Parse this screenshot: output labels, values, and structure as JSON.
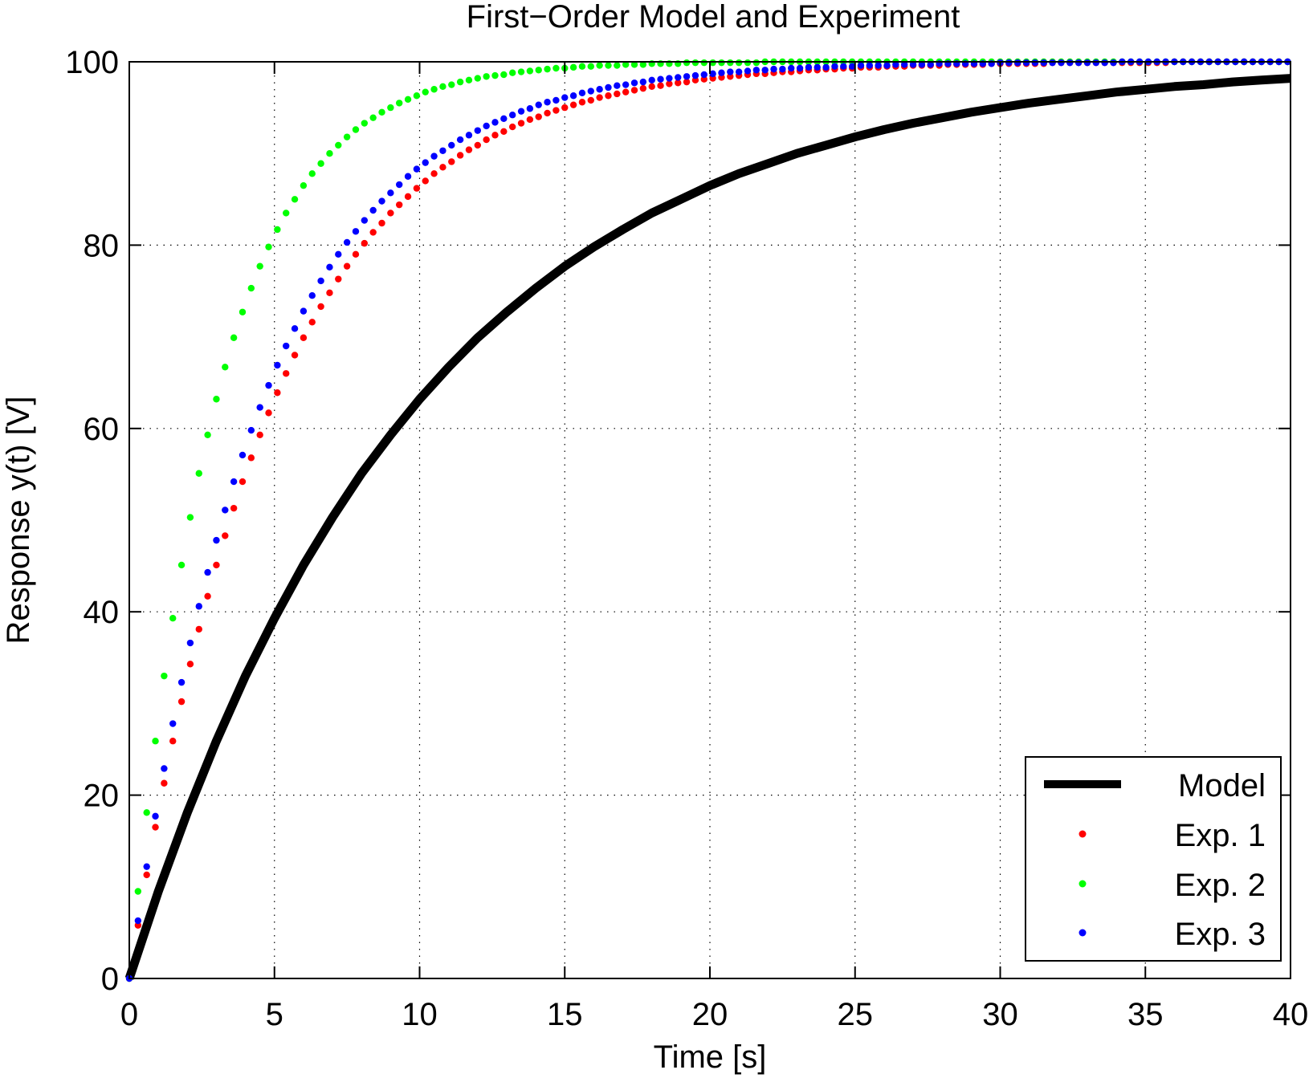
{
  "chart_data": {
    "type": "line",
    "title": "First−Order Model and Experiment",
    "xlabel": "Time [s]",
    "ylabel": "Response y(t) [V]",
    "xlim": [
      0,
      40
    ],
    "ylim": [
      0,
      100
    ],
    "xticks": [
      0,
      5,
      10,
      15,
      20,
      25,
      30,
      35,
      40
    ],
    "yticks": [
      0,
      20,
      40,
      60,
      80,
      100
    ],
    "xtick_labels": [
      "0",
      "5",
      "10",
      "15",
      "20",
      "25",
      "30",
      "35",
      "40"
    ],
    "ytick_labels": [
      "0",
      "20",
      "40",
      "60",
      "80",
      "100"
    ],
    "grid": true,
    "legend_position": "bottom-right",
    "series": [
      {
        "name": "Model",
        "style": "line",
        "color": "#000000",
        "x": [
          0,
          1,
          2,
          3,
          4,
          5,
          6,
          7,
          8,
          9,
          10,
          11,
          12,
          13,
          14,
          15,
          16,
          17,
          18,
          19,
          20,
          21,
          22,
          23,
          24,
          25,
          26,
          27,
          28,
          29,
          30,
          31,
          32,
          33,
          34,
          35,
          36,
          37,
          38,
          39,
          40
        ],
        "y": [
          0,
          9.5,
          18.1,
          25.9,
          33.0,
          39.3,
          45.1,
          50.3,
          55.1,
          59.3,
          63.2,
          66.7,
          69.9,
          72.7,
          75.3,
          77.7,
          79.8,
          81.7,
          83.5,
          85.0,
          86.5,
          87.8,
          88.9,
          90.0,
          90.9,
          91.8,
          92.6,
          93.3,
          93.9,
          94.5,
          95.0,
          95.5,
          95.9,
          96.3,
          96.7,
          97.0,
          97.3,
          97.5,
          97.8,
          98.0,
          98.2
        ]
      },
      {
        "name": "Exp. 1",
        "style": "dots",
        "color": "#ff0000",
        "x": [
          0,
          0.3,
          0.6,
          0.9,
          1.2,
          1.5,
          1.8,
          2.1,
          2.4,
          2.7,
          3.0,
          3.3,
          3.6,
          3.9,
          4.2,
          4.5,
          4.8,
          5.1,
          5.4,
          5.7,
          6.0,
          6.3,
          6.6,
          6.9,
          7.2,
          7.5,
          7.8,
          8.1,
          8.4,
          8.7,
          9.0,
          9.3,
          9.6,
          9.9,
          10.2,
          10.5,
          10.8,
          11.1,
          11.4,
          11.7,
          12.0,
          12.3,
          12.6,
          12.9,
          13.2,
          13.5,
          13.8,
          14.1,
          14.4,
          14.7,
          15.0,
          15.3,
          15.6,
          15.9,
          16.2,
          16.5,
          16.8,
          17.1,
          17.4,
          17.7,
          18.0,
          18.3,
          18.6,
          18.9,
          19.2,
          19.5,
          19.8,
          20.1,
          20.4,
          20.7,
          21.0,
          21.3,
          21.6,
          21.9,
          22.2,
          22.5,
          22.8,
          23.1,
          23.4,
          23.7,
          24.0,
          24.3,
          24.6,
          24.9,
          25.2,
          25.5,
          25.8,
          26.1,
          26.4,
          26.7,
          27.0,
          27.3,
          27.6,
          27.9,
          28.2,
          28.5,
          28.8,
          29.1,
          29.4,
          29.7,
          30.0,
          30.3,
          30.6,
          30.9,
          31.2,
          31.5,
          31.8,
          32.1,
          32.4,
          32.7,
          33.0,
          33.3,
          33.6,
          33.9,
          34.2,
          34.5,
          34.8,
          35.1,
          35.4,
          35.7,
          36.0,
          36.3,
          36.6,
          36.9,
          37.2,
          37.5,
          37.8,
          38.1,
          38.4,
          38.7,
          39.0,
          39.3,
          39.6,
          39.9
        ],
        "y": [
          0,
          5.8,
          11.3,
          16.5,
          21.3,
          25.9,
          30.2,
          34.3,
          38.1,
          41.7,
          45.1,
          48.3,
          51.3,
          54.2,
          56.8,
          59.3,
          61.7,
          63.9,
          66.0,
          68.0,
          69.9,
          71.6,
          73.3,
          74.8,
          76.3,
          77.7,
          79.0,
          80.2,
          81.4,
          82.4,
          83.5,
          84.4,
          85.3,
          86.2,
          87.0,
          87.8,
          88.5,
          89.1,
          89.8,
          90.4,
          90.9,
          91.5,
          92.0,
          92.4,
          92.9,
          93.3,
          93.7,
          94.0,
          94.4,
          94.7,
          95.0,
          95.3,
          95.6,
          95.8,
          96.1,
          96.3,
          96.5,
          96.7,
          96.9,
          97.1,
          97.3,
          97.4,
          97.6,
          97.7,
          97.8,
          98.0,
          98.1,
          98.2,
          98.3,
          98.4,
          98.5,
          98.6,
          98.7,
          98.7,
          98.8,
          98.9,
          98.9,
          99.0,
          99.1,
          99.1,
          99.2,
          99.2,
          99.3,
          99.3,
          99.4,
          99.4,
          99.4,
          99.5,
          99.5,
          99.5,
          99.6,
          99.6,
          99.6,
          99.6,
          99.7,
          99.7,
          99.7,
          99.7,
          99.7,
          99.8,
          99.8,
          99.8,
          99.8,
          99.8,
          99.8,
          99.8,
          99.9,
          99.9,
          99.9,
          99.9,
          99.9,
          99.9,
          99.9,
          99.9,
          99.9,
          99.9,
          99.9,
          99.9,
          99.9,
          99.9,
          100,
          100,
          100,
          100,
          100,
          100,
          100,
          100,
          100,
          100,
          100,
          100,
          100,
          100
        ]
      },
      {
        "name": "Exp. 2",
        "style": "dots",
        "color": "#00ff00",
        "x": [
          0,
          0.3,
          0.6,
          0.9,
          1.2,
          1.5,
          1.8,
          2.1,
          2.4,
          2.7,
          3.0,
          3.3,
          3.6,
          3.9,
          4.2,
          4.5,
          4.8,
          5.1,
          5.4,
          5.7,
          6.0,
          6.3,
          6.6,
          6.9,
          7.2,
          7.5,
          7.8,
          8.1,
          8.4,
          8.7,
          9.0,
          9.3,
          9.6,
          9.9,
          10.2,
          10.5,
          10.8,
          11.1,
          11.4,
          11.7,
          12.0,
          12.3,
          12.6,
          12.9,
          13.2,
          13.5,
          13.8,
          14.1,
          14.4,
          14.7,
          15.0,
          15.3,
          15.6,
          15.9,
          16.2,
          16.5,
          16.8,
          17.1,
          17.4,
          17.7,
          18.0,
          18.3,
          18.6,
          18.9,
          19.2,
          19.5,
          19.8,
          20.1,
          20.4,
          20.7,
          21.0,
          21.3,
          21.6,
          21.9,
          22.2,
          22.5,
          22.8,
          23.1,
          23.4,
          23.7,
          24.0,
          24.3,
          24.6,
          24.9,
          25.2,
          25.5,
          25.8,
          26.1,
          26.4,
          26.7,
          27.0,
          27.3,
          27.6,
          27.9,
          28.2,
          28.5,
          28.8,
          29.1,
          29.4,
          29.7,
          30.0,
          30.3,
          30.6,
          30.9,
          31.2,
          31.5,
          31.8,
          32.1,
          32.4,
          32.7,
          33.0,
          33.3,
          33.6,
          33.9,
          34.2,
          34.5,
          34.8,
          35.1,
          35.4,
          35.7,
          36.0,
          36.3,
          36.6,
          36.9,
          37.2,
          37.5,
          37.8,
          38.1,
          38.4,
          38.7,
          39.0,
          39.3,
          39.6,
          39.9
        ],
        "y": [
          0,
          9.5,
          18.1,
          25.9,
          33.0,
          39.3,
          45.1,
          50.3,
          55.1,
          59.3,
          63.2,
          66.7,
          69.9,
          72.7,
          75.3,
          77.7,
          79.8,
          81.7,
          83.5,
          85.0,
          86.5,
          87.8,
          88.9,
          90.0,
          90.9,
          91.8,
          92.6,
          93.3,
          93.9,
          94.5,
          95.0,
          95.5,
          95.9,
          96.3,
          96.7,
          97.0,
          97.3,
          97.5,
          97.8,
          98.0,
          98.2,
          98.4,
          98.5,
          98.6,
          98.8,
          98.9,
          99.0,
          99.1,
          99.2,
          99.3,
          99.3,
          99.4,
          99.5,
          99.5,
          99.6,
          99.6,
          99.6,
          99.7,
          99.7,
          99.7,
          99.8,
          99.8,
          99.8,
          99.8,
          99.9,
          99.9,
          99.9,
          99.9,
          99.9,
          99.9,
          99.9,
          99.9,
          99.9,
          100,
          100,
          100,
          100,
          100,
          100,
          100,
          100,
          100,
          100,
          100,
          100,
          100,
          100,
          100,
          100,
          100,
          100,
          100,
          100,
          100,
          100,
          100,
          100,
          100,
          100,
          100,
          100,
          100,
          100,
          100,
          100,
          100,
          100,
          100,
          100,
          100,
          100,
          100,
          100,
          100,
          100,
          100,
          100,
          100,
          100,
          100,
          100,
          100,
          100,
          100,
          100,
          100,
          100,
          100,
          100,
          100,
          100,
          100,
          100,
          100
        ]
      },
      {
        "name": "Exp. 3",
        "style": "dots",
        "color": "#0000ff",
        "x": [
          0,
          0.3,
          0.6,
          0.9,
          1.2,
          1.5,
          1.8,
          2.1,
          2.4,
          2.7,
          3.0,
          3.3,
          3.6,
          3.9,
          4.2,
          4.5,
          4.8,
          5.1,
          5.4,
          5.7,
          6.0,
          6.3,
          6.6,
          6.9,
          7.2,
          7.5,
          7.8,
          8.1,
          8.4,
          8.7,
          9.0,
          9.3,
          9.6,
          9.9,
          10.2,
          10.5,
          10.8,
          11.1,
          11.4,
          11.7,
          12.0,
          12.3,
          12.6,
          12.9,
          13.2,
          13.5,
          13.8,
          14.1,
          14.4,
          14.7,
          15.0,
          15.3,
          15.6,
          15.9,
          16.2,
          16.5,
          16.8,
          17.1,
          17.4,
          17.7,
          18.0,
          18.3,
          18.6,
          18.9,
          19.2,
          19.5,
          19.8,
          20.1,
          20.4,
          20.7,
          21.0,
          21.3,
          21.6,
          21.9,
          22.2,
          22.5,
          22.8,
          23.1,
          23.4,
          23.7,
          24.0,
          24.3,
          24.6,
          24.9,
          25.2,
          25.5,
          25.8,
          26.1,
          26.4,
          26.7,
          27.0,
          27.3,
          27.6,
          27.9,
          28.2,
          28.5,
          28.8,
          29.1,
          29.4,
          29.7,
          30.0,
          30.3,
          30.6,
          30.9,
          31.2,
          31.5,
          31.8,
          32.1,
          32.4,
          32.7,
          33.0,
          33.3,
          33.6,
          33.9,
          34.2,
          34.5,
          34.8,
          35.1,
          35.4,
          35.7,
          36.0,
          36.3,
          36.6,
          36.9,
          37.2,
          37.5,
          37.8,
          38.1,
          38.4,
          38.7,
          39.0,
          39.3,
          39.6,
          39.9
        ],
        "y": [
          0,
          6.3,
          12.2,
          17.7,
          22.9,
          27.8,
          32.3,
          36.6,
          40.6,
          44.3,
          47.8,
          51.1,
          54.2,
          57.1,
          59.8,
          62.3,
          64.7,
          66.9,
          69.0,
          70.9,
          72.8,
          74.5,
          76.1,
          77.6,
          79.0,
          80.3,
          81.5,
          82.7,
          83.8,
          84.8,
          85.7,
          86.6,
          87.5,
          88.3,
          89.0,
          89.7,
          90.3,
          90.9,
          91.5,
          92.0,
          92.5,
          93.0,
          93.4,
          93.8,
          94.2,
          94.6,
          94.9,
          95.3,
          95.6,
          95.8,
          96.1,
          96.3,
          96.6,
          96.8,
          97.0,
          97.2,
          97.4,
          97.5,
          97.7,
          97.8,
          98.0,
          98.1,
          98.2,
          98.3,
          98.4,
          98.5,
          98.6,
          98.7,
          98.8,
          98.9,
          98.9,
          99.0,
          99.1,
          99.1,
          99.2,
          99.2,
          99.3,
          99.3,
          99.4,
          99.4,
          99.4,
          99.5,
          99.5,
          99.5,
          99.6,
          99.6,
          99.6,
          99.6,
          99.7,
          99.7,
          99.7,
          99.7,
          99.7,
          99.8,
          99.8,
          99.8,
          99.8,
          99.8,
          99.8,
          99.8,
          99.9,
          99.9,
          99.9,
          99.9,
          99.9,
          99.9,
          99.9,
          99.9,
          99.9,
          99.9,
          99.9,
          99.9,
          99.9,
          99.9,
          100,
          100,
          100,
          100,
          100,
          100,
          100,
          100,
          100,
          100,
          100,
          100,
          100,
          100,
          100,
          100,
          100,
          100,
          100,
          100
        ]
      }
    ]
  }
}
